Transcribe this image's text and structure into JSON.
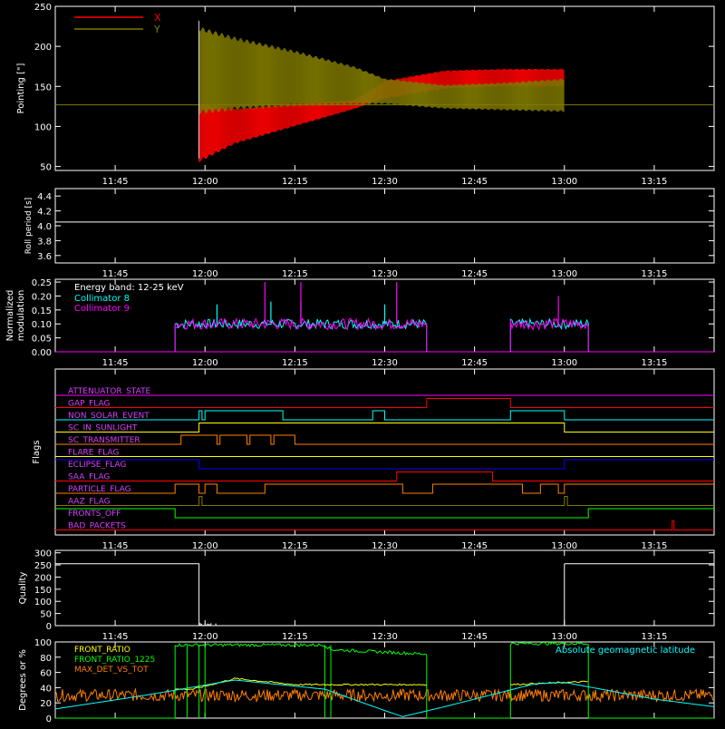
{
  "time_axis": {
    "start": "11:35",
    "end": "13:25",
    "ticks": [
      "11:45",
      "12:00",
      "12:15",
      "12:30",
      "12:45",
      "13:00",
      "13:15"
    ]
  },
  "colors": {
    "red": "#ff0000",
    "olive": "#807a00",
    "white": "#ffffff",
    "cyan": "#00ffff",
    "magenta": "#ff00ff",
    "green": "#00ff00",
    "yellow": "#ffff00",
    "orange": "#ff8000",
    "blue": "#0000ff",
    "flag_label": "#d93fff"
  },
  "chart_data": [
    {
      "type": "area",
      "ylabel": "Pointing [\"]",
      "ylim": [
        45,
        250
      ],
      "yticks": [
        50,
        100,
        150,
        200,
        250
      ],
      "baseline": 127,
      "legend": [
        {
          "name": "X",
          "color": "#ff0000"
        },
        {
          "name": "Y",
          "color": "#807a00"
        }
      ],
      "series": [
        {
          "name": "X",
          "color": "#ff0000",
          "x": [
            "11:59",
            "12:05",
            "12:15",
            "12:25",
            "12:30",
            "12:40",
            "12:50",
            "13:00"
          ],
          "low": [
            55,
            78,
            100,
            122,
            135,
            147,
            150,
            150
          ],
          "high": [
            130,
            122,
            128,
            133,
            157,
            170,
            172,
            172
          ]
        },
        {
          "name": "Y",
          "color": "#807a00",
          "x": [
            "11:59",
            "12:05",
            "12:15",
            "12:25",
            "12:30",
            "12:40",
            "12:50",
            "13:00"
          ],
          "low": [
            115,
            120,
            125,
            127,
            128,
            122,
            120,
            118
          ],
          "high": [
            225,
            212,
            195,
            175,
            160,
            152,
            155,
            160
          ]
        }
      ]
    },
    {
      "type": "line",
      "ylabel": "Roll period [s]",
      "ylim": [
        3.5,
        4.5
      ],
      "yticks": [
        "3.6",
        "3.8",
        "4.0",
        "4.2",
        "4.4"
      ],
      "value": 4.05
    },
    {
      "type": "line",
      "ylabel": "Normalized modulation",
      "ylim": [
        0,
        0.26
      ],
      "yticks": [
        "0.00",
        "0.05",
        "0.10",
        "0.15",
        "0.20",
        "0.25"
      ],
      "annotation": "Energy band: 12-25 keV",
      "segments": [
        [
          "11:55",
          "12:37"
        ],
        [
          "12:51",
          "13:04"
        ]
      ],
      "series": [
        {
          "name": "Collimator 8",
          "color": "#00ffff",
          "level": 0.1,
          "spread": 0.035,
          "spikes": [
            [
              "12:02",
              0.17
            ],
            [
              "12:11",
              0.18
            ],
            [
              "12:16",
              0.18
            ],
            [
              "12:30",
              0.17
            ]
          ]
        },
        {
          "name": "Collimator 9",
          "color": "#ff00ff",
          "level": 0.1,
          "spread": 0.04,
          "spikes": [
            [
              "12:10",
              0.25
            ],
            [
              "12:16",
              0.25
            ],
            [
              "12:32",
              0.25
            ],
            [
              "12:59",
              0.2
            ]
          ]
        }
      ]
    },
    {
      "type": "line",
      "ylabel": "Flags",
      "flags": [
        {
          "name": "ATTENUATOR_STATE",
          "color": "#ff00ff",
          "trans": []
        },
        {
          "name": "GAP_FLAG",
          "color": "#ff0000",
          "trans": [
            [
              "12:37",
              1
            ],
            [
              "12:51",
              0
            ]
          ]
        },
        {
          "name": "NON_SOLAR_EVENT",
          "color": "#00ffff",
          "trans": [
            [
              "11:59",
              1
            ],
            [
              "11:59.5",
              0
            ],
            [
              "12:00",
              1
            ],
            [
              "12:13",
              0
            ],
            [
              "12:28",
              1
            ],
            [
              "12:30",
              0
            ],
            [
              "12:51",
              1
            ],
            [
              "13:00",
              0
            ]
          ]
        },
        {
          "name": "SC_IN_SUNLIGHT",
          "color": "#ffff00",
          "trans": [
            [
              "11:59",
              1
            ],
            [
              "13:00",
              0
            ]
          ]
        },
        {
          "name": "SC_TRANSMITTER",
          "color": "#ff8000",
          "trans": [
            [
              "11:56",
              1
            ],
            [
              "12:02",
              0
            ],
            [
              "12:02.5",
              1
            ],
            [
              "12:07",
              0
            ],
            [
              "12:07.5",
              1
            ],
            [
              "12:11",
              0
            ],
            [
              "12:11.5",
              1
            ],
            [
              "12:15",
              0
            ]
          ]
        },
        {
          "name": "FLARE_FLAG",
          "color": "#ffff00",
          "trans": []
        },
        {
          "name": "ECLIPSE_FLAG",
          "color": "#0000ff",
          "trans": [
            [
              "11:59",
              0
            ],
            [
              "13:00",
              1
            ]
          ]
        },
        {
          "name": "SAA_FLAG",
          "color": "#ff0000",
          "trans": [
            [
              "12:32",
              1
            ],
            [
              "12:48",
              0
            ]
          ]
        },
        {
          "name": "PARTICLE_FLAG",
          "color": "#ff8000",
          "trans": [
            [
              "11:55",
              1
            ],
            [
              "11:59",
              0
            ],
            [
              "12:00",
              1
            ],
            [
              "12:02",
              0
            ],
            [
              "12:10",
              1
            ],
            [
              "12:33",
              0
            ],
            [
              "12:38",
              1
            ],
            [
              "12:53",
              0
            ],
            [
              "12:56",
              1
            ],
            [
              "12:59",
              0
            ],
            [
              "13:00",
              1
            ]
          ]
        },
        {
          "name": "AAZ_FLAG",
          "color": "#807a00",
          "trans": [
            [
              "11:59",
              1
            ],
            [
              "11:59.5",
              0
            ],
            [
              "13:00",
              1
            ],
            [
              "13:00.5",
              0
            ]
          ]
        },
        {
          "name": "FRONTS_OFF",
          "color": "#00ff00",
          "trans": [
            [
              "11:55",
              0
            ],
            [
              "13:04",
              1
            ]
          ]
        },
        {
          "name": "BAD_PACKETS",
          "color": "#ff0000",
          "trans": [
            [
              "13:18",
              1
            ],
            [
              "13:18.3",
              0
            ]
          ]
        }
      ]
    },
    {
      "type": "line",
      "ylabel": "Quality",
      "ylim": [
        0,
        310
      ],
      "yticks": [
        0,
        50,
        100,
        150,
        200,
        250,
        300
      ],
      "high_value": 255,
      "high_ranges": [
        [
          "11:35",
          "11:59"
        ],
        [
          "13:00",
          "13:25"
        ]
      ]
    },
    {
      "type": "line",
      "ylabel": "Degrees or %",
      "ylim": [
        0,
        100
      ],
      "yticks": [
        0,
        20,
        40,
        60,
        80,
        100
      ],
      "legend_right": "Absolute geomagnetic latitude",
      "series": [
        {
          "name": "FRONT_RATIO",
          "color": "#ffff00"
        },
        {
          "name": "FRONT_RATIO_1225",
          "color": "#00ff00"
        },
        {
          "name": "MAX_DET_VS_TOT",
          "color": "#ff8000"
        }
      ],
      "latitude": [
        [
          "11:35",
          12
        ],
        [
          "11:50",
          30
        ],
        [
          "12:05",
          50
        ],
        [
          "12:20",
          38
        ],
        [
          "12:30",
          10
        ],
        [
          "12:33",
          2
        ],
        [
          "12:40",
          15
        ],
        [
          "12:55",
          45
        ],
        [
          "13:00",
          47
        ],
        [
          "13:15",
          25
        ],
        [
          "13:25",
          15
        ]
      ],
      "front_ratio": [
        [
          "11:58",
          38
        ],
        [
          "12:05",
          52
        ],
        [
          "12:15",
          44
        ],
        [
          "12:25",
          44
        ],
        [
          "12:37",
          44
        ],
        [
          "12:51",
          44
        ],
        [
          "13:04",
          48
        ]
      ],
      "front_ratio_1225_high": [
        [
          "11:55",
          96
        ],
        [
          "12:20",
          96
        ],
        [
          "12:21",
          90
        ],
        [
          "12:37",
          84
        ],
        [
          "12:51",
          98
        ],
        [
          "13:04",
          98
        ]
      ],
      "max_det_level": 30
    }
  ]
}
